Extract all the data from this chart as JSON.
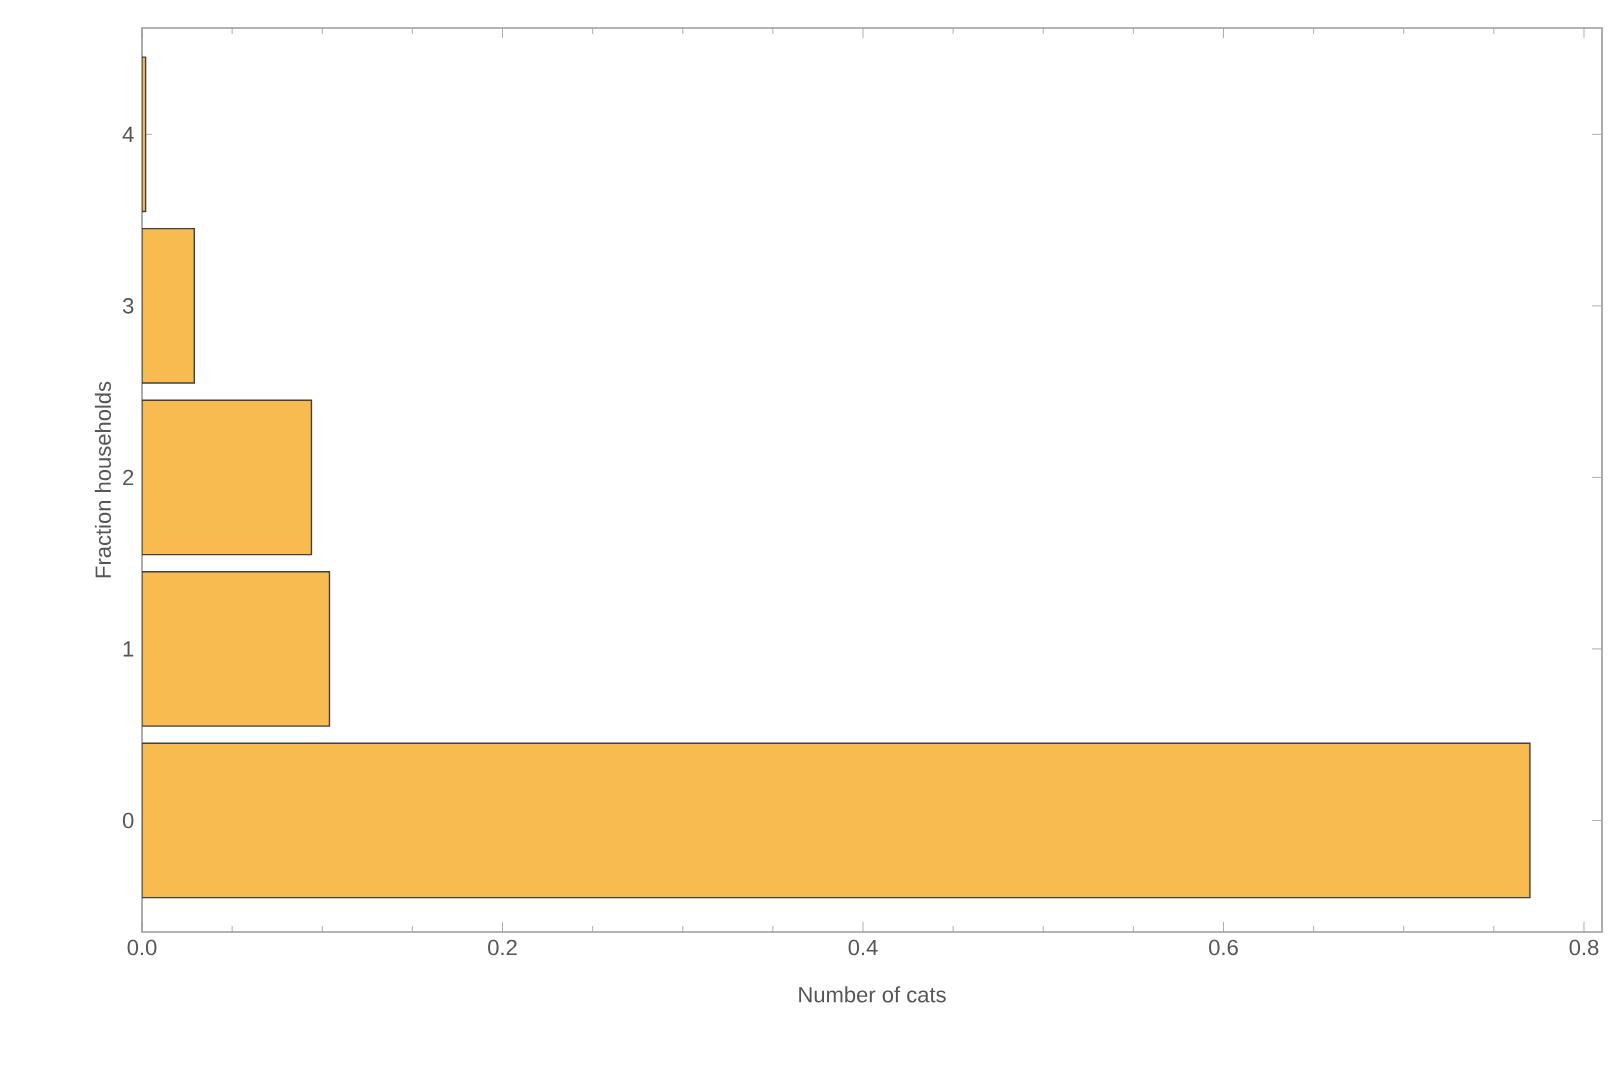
{
  "chart_data": {
    "type": "bar",
    "orientation": "horizontal",
    "xlabel": "Number of cats",
    "ylabel": "Fraction households",
    "categories": [
      "4",
      "3",
      "2",
      "1",
      "0"
    ],
    "values": [
      0.002,
      0.029,
      0.094,
      0.104,
      0.77
    ],
    "color": "#f8bb50",
    "xlim": [
      0,
      0.81
    ],
    "xticks": [
      {
        "value": 0,
        "label": "0.0"
      },
      0.2,
      0.4,
      0.6,
      0.8
    ],
    "grid": false
  }
}
